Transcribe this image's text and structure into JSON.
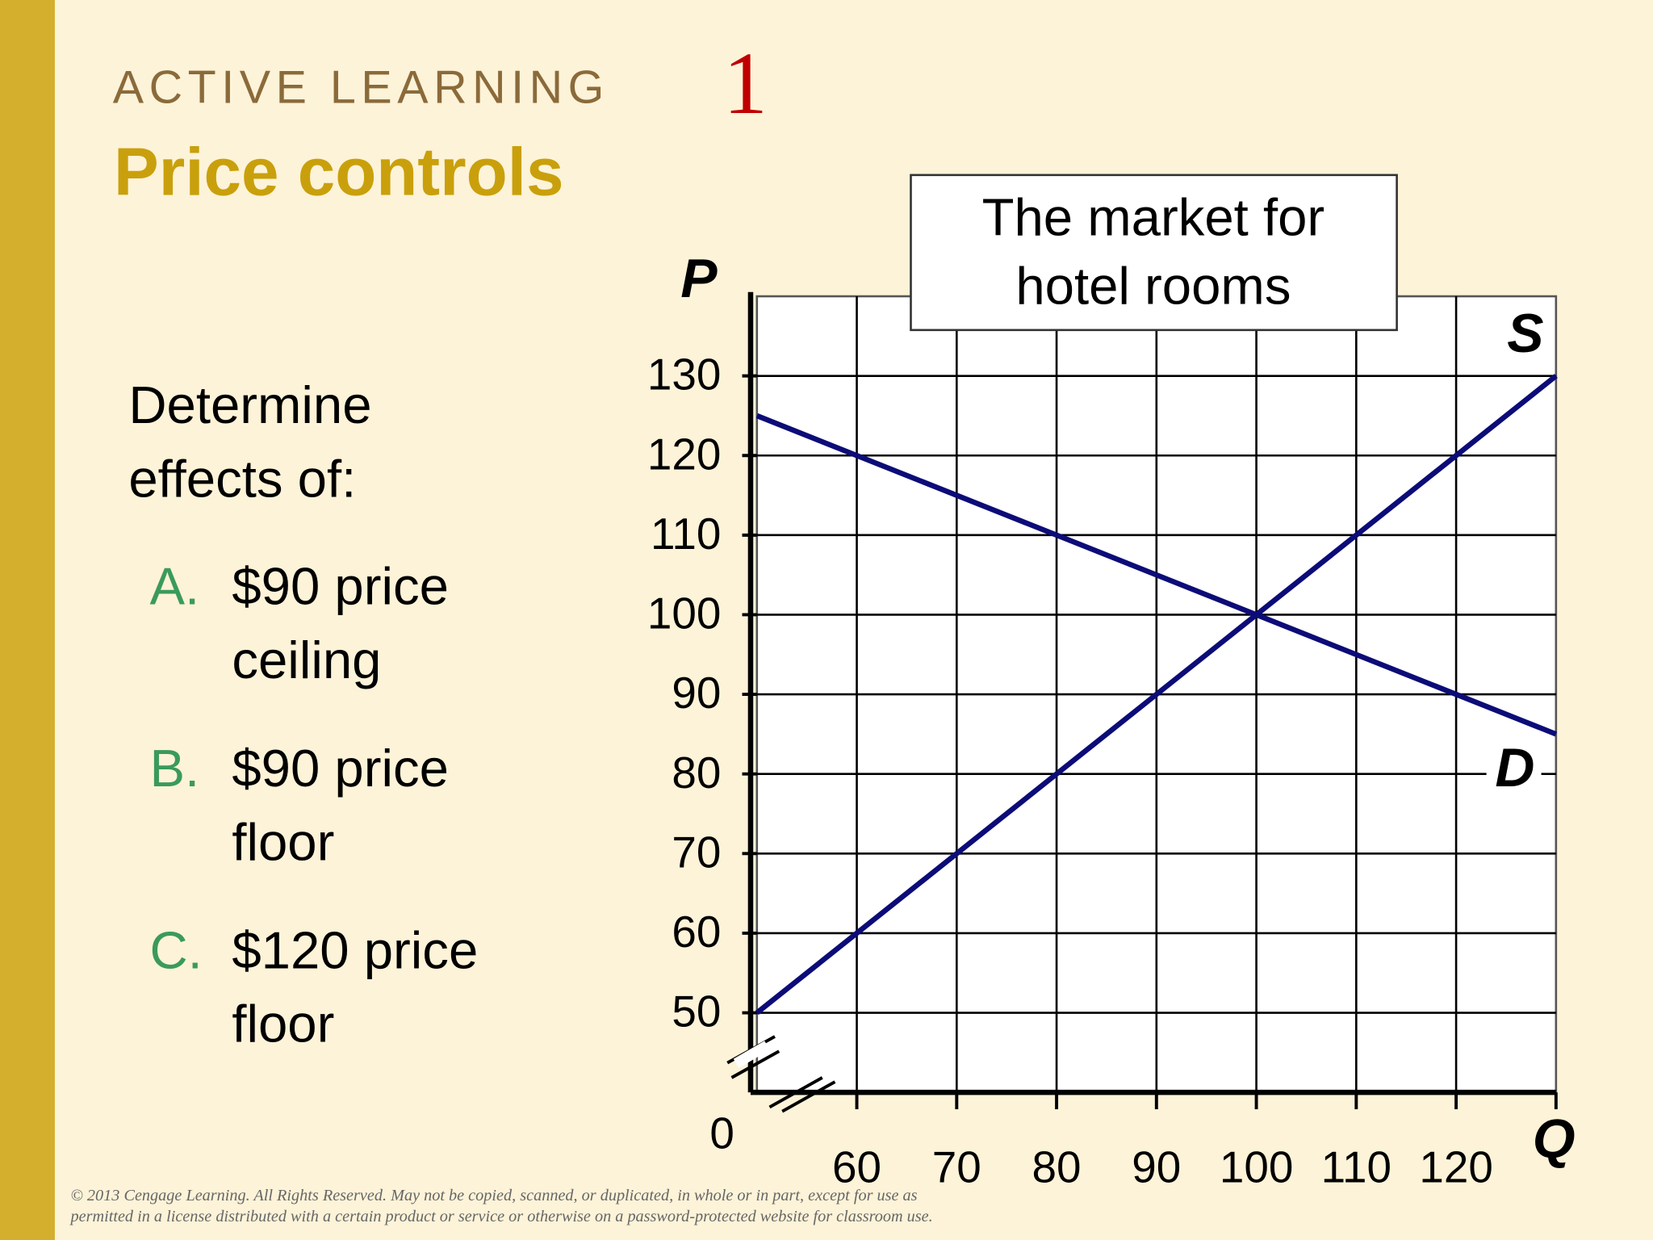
{
  "slide": {
    "header": "ACTIVE LEARNING",
    "number": "1",
    "title": "Price controls",
    "prompt": [
      "Determine",
      "effects of:"
    ],
    "options": [
      {
        "letter": "A.",
        "lines": [
          "$90 price",
          "ceiling"
        ]
      },
      {
        "letter": "B.",
        "lines": [
          "$90 price",
          "floor"
        ]
      },
      {
        "letter": "C.",
        "lines": [
          "$120 price",
          "floor"
        ]
      }
    ],
    "copyright": [
      "© 2013 Cengage Learning. All Rights Reserved. May not be copied, scanned, or duplicated, in whole or in part, except for use as",
      "permitted in a license distributed with a certain product or service or otherwise on a password-protected website for classroom use."
    ]
  },
  "chart_data": {
    "type": "line",
    "title": [
      "The market for",
      "hotel rooms"
    ],
    "xlabel": "Q",
    "ylabel": "P",
    "origin_label": "0",
    "xlim": [
      50,
      130
    ],
    "ylim": [
      40,
      140
    ],
    "xticks": [
      60,
      70,
      80,
      90,
      100,
      110,
      120
    ],
    "yticks": [
      50,
      60,
      70,
      80,
      90,
      100,
      110,
      120,
      130
    ],
    "grid": true,
    "series": [
      {
        "name": "S",
        "color": "#0c0c78",
        "x": [
          50,
          130
        ],
        "values": [
          50,
          130
        ]
      },
      {
        "name": "D",
        "color": "#0c0c78",
        "x": [
          50,
          130
        ],
        "values": [
          125,
          85
        ]
      }
    ]
  }
}
